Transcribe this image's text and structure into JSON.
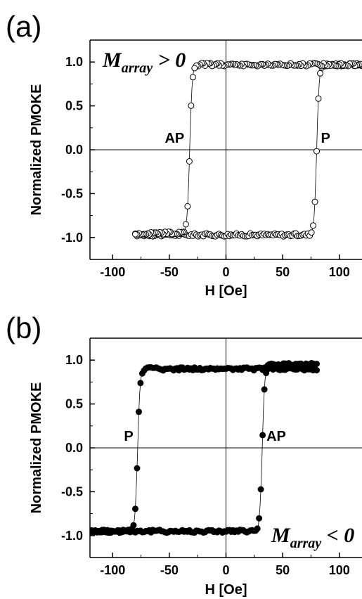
{
  "chart_data": [
    {
      "panel": "(a)",
      "type": "scatter",
      "xlabel": "H [Oe]",
      "ylabel": "Normalized PMOKE",
      "xlim": [
        -120,
        120
      ],
      "ylim": [
        -1.25,
        1.25
      ],
      "x_ticks": [
        -100,
        -50,
        0,
        50,
        100
      ],
      "y_ticks": [
        -1.0,
        -0.5,
        0.0,
        0.5,
        1.0
      ],
      "tick_labels_x": [
        "-100",
        "-50",
        "0",
        "50",
        "100"
      ],
      "tick_labels_y": [
        "-1.0",
        "-0.5",
        "0.0",
        "0.5",
        "1.0"
      ],
      "marker": "open-circle",
      "annotations": [
        {
          "text": "AP",
          "x": -33,
          "y": 0.0
        },
        {
          "text": "P",
          "x": 80,
          "y": 0.0
        }
      ],
      "label": {
        "main": "M",
        "sub": "array",
        "tail": " > 0"
      },
      "series": [
        {
          "branch": "ascending",
          "hsw": 80,
          "sat_low": -0.97,
          "sat_high": 0.97,
          "x_start": -80,
          "x_end": 120
        },
        {
          "branch": "descending",
          "hsw": -32,
          "sat_low": -0.95,
          "sat_high": 0.97,
          "x_start": 120,
          "x_end": -80
        }
      ]
    },
    {
      "panel": "(b)",
      "type": "scatter",
      "xlabel": "H [Oe]",
      "ylabel": "Normalized PMOKE",
      "xlim": [
        -120,
        120
      ],
      "ylim": [
        -1.25,
        1.25
      ],
      "x_ticks": [
        -100,
        -50,
        0,
        50,
        100
      ],
      "y_ticks": [
        -1.0,
        -0.5,
        0.0,
        0.5,
        1.0
      ],
      "tick_labels_x": [
        "-100",
        "-50",
        "0",
        "50",
        "100"
      ],
      "tick_labels_y": [
        "-1.0",
        "-0.5",
        "0.0",
        "0.5",
        "1.0"
      ],
      "marker": "filled-circle",
      "annotations": [
        {
          "text": "P",
          "x": -78,
          "y": 0.0
        },
        {
          "text": "AP",
          "x": 32,
          "y": 0.0
        }
      ],
      "label": {
        "main": "M",
        "sub": "array",
        "tail": " < 0"
      },
      "series": [
        {
          "branch": "ascending",
          "hsw": 32,
          "sat_low": -0.95,
          "sat_high": 0.95,
          "x_start": -120,
          "x_end": 80
        },
        {
          "branch": "descending",
          "hsw": -78,
          "sat_low": -0.95,
          "sat_high": 0.9,
          "x_start": 80,
          "x_end": -120
        }
      ]
    }
  ]
}
